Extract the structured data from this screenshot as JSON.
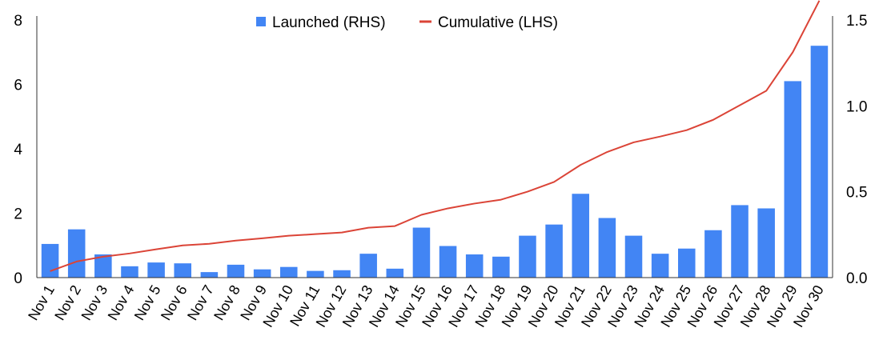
{
  "chart_data": {
    "type": "bar",
    "title": "",
    "categories": [
      "Nov 1",
      "Nov 2",
      "Nov 3",
      "Nov 4",
      "Nov 5",
      "Nov 6",
      "Nov 7",
      "Nov 8",
      "Nov 9",
      "Nov 10",
      "Nov 11",
      "Nov 12",
      "Nov 13",
      "Nov 14",
      "Nov 15",
      "Nov 16",
      "Nov 17",
      "Nov 18",
      "Nov 19",
      "Nov 20",
      "Nov 21",
      "Nov 22",
      "Nov 23",
      "Nov 24",
      "Nov 25",
      "Nov 26",
      "Nov 27",
      "Nov 28",
      "Nov 29",
      "Nov 30"
    ],
    "series": [
      {
        "name": "Launched (RHS)",
        "type": "bar",
        "axis": "right",
        "color": "#4285F4",
        "values": [
          0.196,
          0.281,
          0.135,
          0.066,
          0.088,
          0.083,
          0.032,
          0.075,
          0.048,
          0.062,
          0.039,
          0.043,
          0.139,
          0.052,
          0.291,
          0.184,
          0.135,
          0.122,
          0.244,
          0.309,
          0.488,
          0.347,
          0.244,
          0.139,
          0.169,
          0.276,
          0.422,
          0.403,
          1.144,
          1.35
        ]
      },
      {
        "name": "Cumulative (LHS)",
        "type": "line",
        "axis": "left",
        "color": "#DB4437",
        "values": [
          0.2,
          0.5,
          0.65,
          0.75,
          0.88,
          1.0,
          1.05,
          1.15,
          1.22,
          1.3,
          1.35,
          1.4,
          1.55,
          1.6,
          1.95,
          2.15,
          2.3,
          2.42,
          2.67,
          2.97,
          3.5,
          3.9,
          4.2,
          4.38,
          4.58,
          4.9,
          5.35,
          5.8,
          7.0,
          8.6
        ]
      }
    ],
    "y_left": {
      "lim": [
        0,
        8
      ],
      "ticks": [
        "0",
        "2",
        "4",
        "6",
        "8"
      ],
      "tick_values": [
        0,
        2,
        4,
        6,
        8
      ]
    },
    "y_right": {
      "lim": [
        0,
        1.5
      ],
      "ticks": [
        "0.0",
        "0.5",
        "1.0",
        "1.5"
      ],
      "tick_values": [
        0,
        0.5,
        1.0,
        1.5
      ]
    },
    "xlabel": "",
    "ylabel": "",
    "grid": false,
    "legend_position": "top-center",
    "x_tick_rotation_deg": -60
  }
}
